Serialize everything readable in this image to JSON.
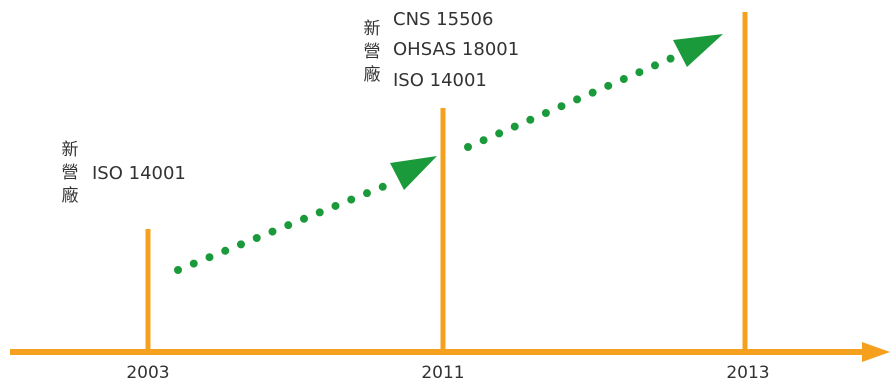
{
  "timeline": {
    "years": [
      "2003",
      "2011",
      "2013"
    ],
    "milestones": [
      {
        "year": "2003",
        "site_chars": [
          "新",
          "營",
          "廠"
        ],
        "certifications": [
          "ISO 14001"
        ]
      },
      {
        "year": "2011",
        "site_chars": [
          "新",
          "營",
          "廠"
        ],
        "certifications": [
          "CNS 15506",
          "OHSAS 18001",
          "ISO 14001"
        ]
      }
    ]
  },
  "colors": {
    "axis": "#F5A01E",
    "arrow": "#1A9A3A",
    "text": "#333333"
  }
}
